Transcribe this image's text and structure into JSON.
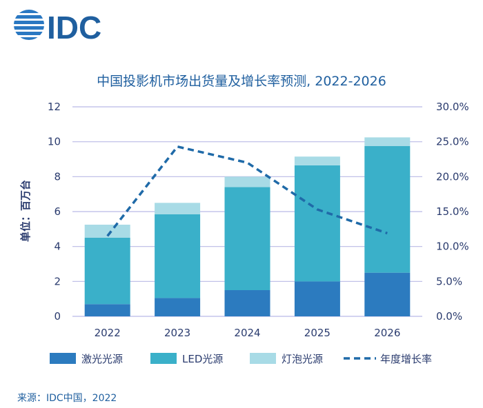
{
  "logo": {
    "text": "IDC",
    "color": "#1f5f9f"
  },
  "chart_data": {
    "type": "bar",
    "stacked": true,
    "title": "中国投影机市场出货量及增长率预测, 2022-2026",
    "ylabel": "单位：百万台",
    "categories": [
      "2022",
      "2023",
      "2024",
      "2025",
      "2026"
    ],
    "ylim": [
      0,
      12
    ],
    "yticks": [
      "0",
      "2",
      "4",
      "6",
      "8",
      "10",
      "12"
    ],
    "y2lim": [
      0,
      30
    ],
    "y2ticks": [
      "0.0%",
      "5.0%",
      "10.0%",
      "15.0%",
      "20.0%",
      "25.0%",
      "30.0%"
    ],
    "series": [
      {
        "name": "激光光源",
        "values": [
          0.7,
          1.05,
          1.5,
          2.0,
          2.5
        ],
        "color": "#2c7bbf"
      },
      {
        "name": "LED光源",
        "values": [
          3.8,
          4.8,
          5.9,
          6.65,
          7.25
        ],
        "color": "#3ab0c9"
      },
      {
        "name": "灯泡光源",
        "values": [
          0.75,
          0.65,
          0.6,
          0.5,
          0.5
        ],
        "color": "#a8dbe6"
      }
    ],
    "line": {
      "name": "年度增长率",
      "axis": "right",
      "values": [
        11.5,
        24.3,
        22.0,
        15.3,
        11.9
      ],
      "color": "#1f6aa8",
      "style": "dashed"
    },
    "legend_position": "bottom",
    "grid": true,
    "gridColor": "#b9b9e6"
  },
  "source": "来源：IDC中国，2022"
}
